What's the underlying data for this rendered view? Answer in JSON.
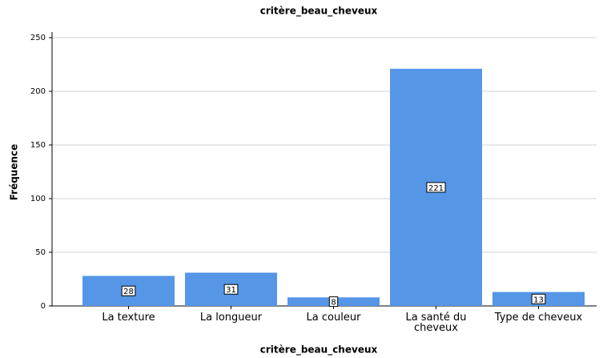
{
  "chart_data": {
    "type": "bar",
    "title": "critère_beau_cheveux",
    "x_label": "critère_beau_cheveux",
    "y_label": "Fréquence",
    "categories": [
      "La texture",
      "La longueur",
      "La couleur",
      "La santé du cheveux",
      "Type de cheveux"
    ],
    "values": [
      28,
      31,
      8,
      221,
      13
    ],
    "color": "#5596e6",
    "ylim": [
      0,
      250
    ],
    "yticks": [
      0,
      50,
      100,
      150,
      200,
      250
    ],
    "grid": true
  }
}
